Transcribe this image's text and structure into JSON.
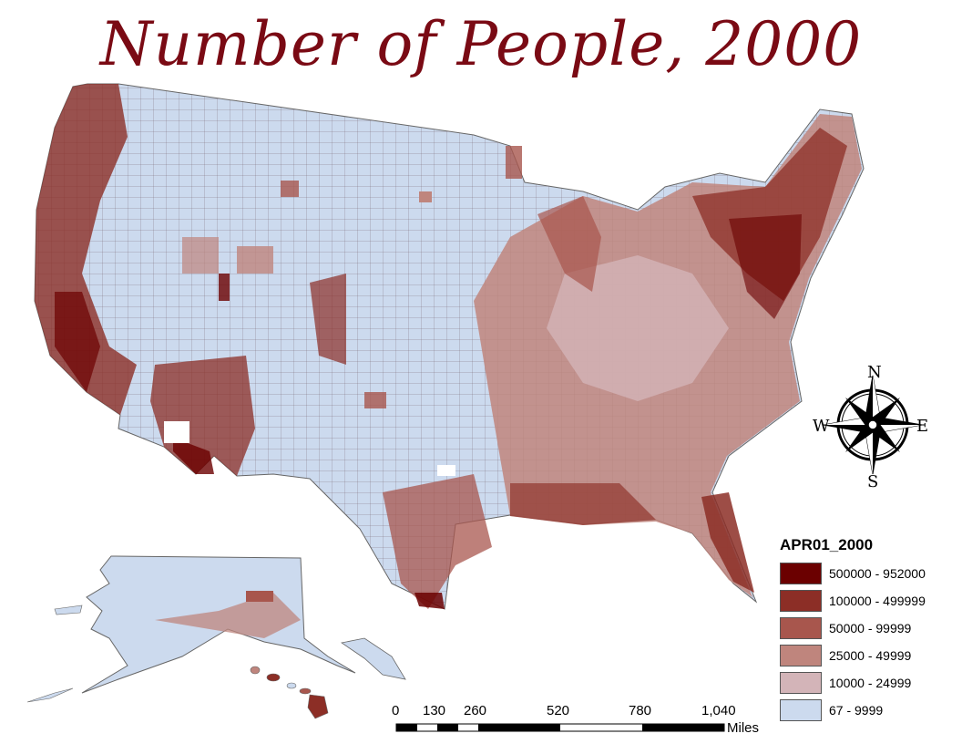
{
  "title": "Number of People, 2000",
  "legend": {
    "title": "APR01_2000",
    "classes": [
      {
        "label": "500000 - 952000",
        "color": "#6b0000"
      },
      {
        "label": "100000 - 499999",
        "color": "#8c2e26"
      },
      {
        "label": "50000 - 99999",
        "color": "#a8564d"
      },
      {
        "label": "25000 - 49999",
        "color": "#bf857d"
      },
      {
        "label": "10000 - 24999",
        "color": "#d3b4b8"
      },
      {
        "label": "67 - 9999",
        "color": "#ccdaee"
      }
    ]
  },
  "scale_bar": {
    "ticks": [
      "0",
      "130",
      "260",
      "520",
      "780",
      "1,040"
    ],
    "unit": "Miles"
  },
  "compass": {
    "n": "N",
    "s": "S",
    "e": "E",
    "w": "W"
  }
}
